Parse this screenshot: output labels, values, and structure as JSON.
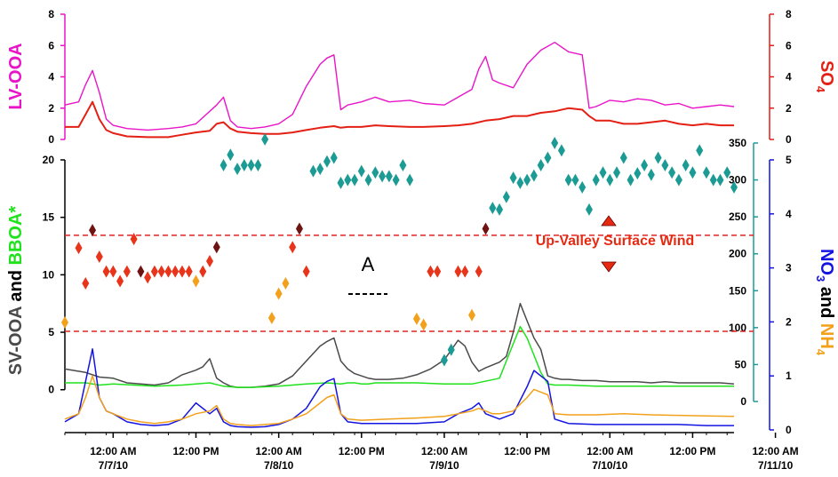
{
  "chart_data": {
    "type": "line",
    "colors": {
      "lv_ooa": "#e815c8",
      "so4": "#e41f14",
      "sv_ooa": "#4a4a4a",
      "bbox": "#1fe21c",
      "no3": "#1414e0",
      "nh4": "#f2a11c",
      "wind_dir": "#1c9b95",
      "wind_upvalley": "#e62a12",
      "threshold": "#e62222"
    },
    "x_axis": {
      "tick_labels": [
        {
          "time": "12:00 AM",
          "date": "7/7/10"
        },
        {
          "time": "12:00 PM",
          "date": ""
        },
        {
          "time": "12:00 AM",
          "date": "7/8/10"
        },
        {
          "time": "12:00 PM",
          "date": ""
        },
        {
          "time": "12:00 AM",
          "date": "7/9/10"
        },
        {
          "time": "12:00 PM",
          "date": ""
        },
        {
          "time": "12:00 AM",
          "date": "7/10/10"
        },
        {
          "time": "12:00 PM",
          "date": ""
        },
        {
          "time": "12:00 AM",
          "date": "7/11/10"
        }
      ],
      "range_hours": [
        -7,
        90
      ]
    },
    "panel_top": {
      "left_axis": {
        "label": "LV-OOA",
        "ylim": [
          0,
          8
        ],
        "ticks": [
          "0",
          "2",
          "4",
          "6",
          "8"
        ]
      },
      "right_axis": {
        "label": "SO",
        "label_sub": "4",
        "ylim": [
          0,
          8
        ],
        "ticks": [
          "0",
          "2",
          "4",
          "6",
          "8"
        ]
      },
      "series": [
        {
          "key": "lv_ooa",
          "x": [
            -7,
            -5,
            -4,
            -3,
            -2,
            -1,
            0,
            2,
            5,
            8,
            10,
            12,
            15,
            16,
            17,
            18,
            20,
            22,
            24,
            26,
            28,
            30,
            31,
            32,
            33,
            34,
            36,
            38,
            40,
            43,
            45,
            48,
            50,
            52,
            53,
            54,
            55,
            56,
            58,
            60,
            62,
            64,
            66,
            68,
            69,
            70,
            72,
            74,
            76,
            78,
            80,
            82,
            84,
            86,
            88,
            90
          ],
          "y": [
            2.2,
            2.4,
            3.5,
            4.4,
            3.0,
            1.3,
            0.9,
            0.7,
            0.6,
            0.7,
            0.8,
            1.0,
            2.2,
            2.7,
            1.2,
            0.8,
            0.7,
            0.8,
            1.0,
            1.6,
            3.4,
            4.8,
            5.2,
            5.4,
            1.9,
            2.2,
            2.4,
            2.7,
            2.4,
            2.5,
            2.3,
            2.2,
            2.7,
            3.2,
            4.5,
            5.3,
            3.8,
            3.6,
            3.3,
            4.8,
            5.7,
            6.2,
            5.6,
            5.4,
            2.0,
            2.1,
            2.5,
            2.4,
            2.6,
            2.5,
            2.2,
            2.3,
            2.0,
            2.1,
            2.2,
            2.1
          ]
        },
        {
          "key": "so4",
          "x": [
            -7,
            -5,
            -4,
            -3,
            -2,
            -1,
            0,
            2,
            5,
            8,
            10,
            12,
            14,
            15,
            16,
            17,
            18,
            20,
            22,
            24,
            26,
            28,
            30,
            32,
            33,
            34,
            36,
            38,
            40,
            43,
            45,
            48,
            50,
            52,
            54,
            56,
            58,
            60,
            62,
            64,
            66,
            68,
            69,
            70,
            72,
            74,
            76,
            78,
            80,
            82,
            84,
            86,
            88,
            90
          ],
          "y": [
            0.8,
            0.8,
            1.6,
            2.4,
            1.3,
            0.6,
            0.4,
            0.2,
            0.15,
            0.15,
            0.3,
            0.45,
            0.55,
            1.0,
            1.1,
            0.7,
            0.5,
            0.4,
            0.35,
            0.35,
            0.45,
            0.6,
            0.75,
            0.85,
            0.75,
            0.8,
            0.8,
            0.9,
            0.85,
            0.8,
            0.8,
            0.85,
            0.9,
            1.0,
            1.2,
            1.3,
            1.5,
            1.5,
            1.7,
            1.8,
            2.0,
            1.9,
            1.5,
            1.2,
            1.2,
            1.0,
            1.0,
            1.1,
            1.2,
            1.0,
            0.9,
            1.0,
            0.9,
            0.9
          ]
        }
      ]
    },
    "panel_bottom": {
      "left_axis": {
        "label_parts": [
          "SV-OOA",
          " and ",
          "BBOA*"
        ],
        "ylim": [
          -3.5,
          20
        ],
        "ticks": [
          "0",
          "5",
          "10",
          "15",
          "20"
        ]
      },
      "right_axis": {
        "label_parts": [
          "NO",
          "3",
          " and ",
          "NH",
          "4"
        ],
        "ylim": [
          0,
          5
        ],
        "ticks": [
          "0",
          "1",
          "2",
          "3",
          "4",
          "5"
        ]
      },
      "wind_axis": {
        "ylim": [
          0,
          350
        ],
        "ticks": [
          "0",
          "50",
          "100",
          "150",
          "200",
          "250",
          "300",
          "350"
        ]
      },
      "series": [
        {
          "key": "sv_ooa",
          "axis": "left",
          "x": [
            -7,
            -4,
            -2,
            0,
            2,
            4,
            6,
            8,
            10,
            12,
            13,
            14,
            15,
            16,
            17,
            18,
            20,
            22,
            24,
            26,
            28,
            30,
            31,
            32,
            33,
            34,
            35,
            36,
            37,
            38,
            40,
            42,
            44,
            46,
            48,
            50,
            51,
            52,
            53,
            54,
            56,
            57,
            58,
            59,
            60,
            61,
            62,
            63,
            64,
            65,
            66,
            68,
            70,
            72,
            74,
            76,
            78,
            80,
            82,
            84,
            86,
            88,
            90
          ],
          "y": [
            1.8,
            1.5,
            1.1,
            1.0,
            0.6,
            0.5,
            0.4,
            0.6,
            1.3,
            1.7,
            2.0,
            2.7,
            1.0,
            0.6,
            0.3,
            0.2,
            0.2,
            0.3,
            0.5,
            1.2,
            2.5,
            3.8,
            4.2,
            4.5,
            2.5,
            1.8,
            1.4,
            1.2,
            1.0,
            0.9,
            0.9,
            1.0,
            1.3,
            1.8,
            2.6,
            4.3,
            3.8,
            2.4,
            1.6,
            1.9,
            2.4,
            2.9,
            5.0,
            7.5,
            6.0,
            4.5,
            3.5,
            1.2,
            1.0,
            0.9,
            0.9,
            0.8,
            0.8,
            0.7,
            0.7,
            0.7,
            0.6,
            0.7,
            0.6,
            0.6,
            0.6,
            0.6,
            0.5
          ]
        },
        {
          "key": "bbox",
          "axis": "left",
          "x": [
            -7,
            -4,
            -2,
            0,
            3,
            6,
            10,
            14,
            16,
            18,
            20,
            24,
            28,
            31,
            33,
            34,
            35,
            36,
            37,
            38,
            40,
            44,
            48,
            52,
            56,
            57,
            58,
            59,
            60,
            61,
            62,
            63,
            64,
            66,
            70,
            74,
            78,
            82,
            86,
            90
          ],
          "y": [
            0.6,
            0.6,
            0.4,
            0.5,
            0.4,
            0.3,
            0.4,
            0.6,
            0.3,
            0.2,
            0.2,
            0.3,
            0.5,
            0.6,
            0.5,
            0.6,
            0.6,
            0.5,
            0.5,
            0.6,
            0.6,
            0.6,
            0.5,
            0.5,
            1.0,
            2.5,
            4.0,
            5.5,
            4.5,
            3.0,
            1.5,
            0.5,
            0.4,
            0.4,
            0.3,
            0.3,
            0.3,
            0.3,
            0.3,
            0.3
          ]
        },
        {
          "key": "no3",
          "axis": "right",
          "x": [
            -7,
            -5,
            -4,
            -3,
            -2,
            -1,
            0,
            2,
            4,
            6,
            8,
            10,
            12,
            14,
            15,
            16,
            17,
            18,
            20,
            22,
            24,
            26,
            28,
            30,
            31,
            32,
            33,
            34,
            36,
            40,
            44,
            48,
            50,
            52,
            53,
            54,
            55,
            56,
            58,
            60,
            61,
            62,
            63,
            64,
            66,
            70,
            74,
            78,
            82,
            86,
            90
          ],
          "y": [
            0.15,
            0.3,
            0.9,
            1.5,
            0.6,
            0.35,
            0.3,
            0.15,
            0.1,
            0.08,
            0.1,
            0.2,
            0.5,
            0.3,
            0.4,
            0.15,
            0.08,
            0.06,
            0.05,
            0.06,
            0.1,
            0.2,
            0.4,
            0.8,
            0.9,
            0.95,
            0.3,
            0.15,
            0.12,
            0.12,
            0.12,
            0.15,
            0.3,
            0.4,
            0.5,
            0.3,
            0.25,
            0.2,
            0.3,
            0.8,
            1.1,
            1.0,
            0.9,
            0.2,
            0.12,
            0.1,
            0.1,
            0.1,
            0.1,
            0.08,
            0.08
          ]
        },
        {
          "key": "nh4",
          "axis": "right",
          "x": [
            -7,
            -5,
            -4,
            -3,
            -2,
            -1,
            0,
            2,
            4,
            6,
            8,
            10,
            12,
            14,
            15,
            16,
            17,
            18,
            20,
            22,
            24,
            26,
            28,
            30,
            31,
            32,
            33,
            34,
            36,
            40,
            44,
            48,
            50,
            52,
            53,
            54,
            55,
            56,
            58,
            60,
            61,
            62,
            63,
            64,
            66,
            70,
            74,
            78,
            82,
            86,
            90
          ],
          "y": [
            0.2,
            0.3,
            0.6,
            1.0,
            0.6,
            0.35,
            0.3,
            0.2,
            0.15,
            0.12,
            0.15,
            0.2,
            0.3,
            0.35,
            0.45,
            0.2,
            0.12,
            0.1,
            0.08,
            0.1,
            0.12,
            0.2,
            0.3,
            0.5,
            0.6,
            0.65,
            0.3,
            0.2,
            0.18,
            0.2,
            0.22,
            0.25,
            0.3,
            0.35,
            0.4,
            0.35,
            0.3,
            0.3,
            0.35,
            0.6,
            0.75,
            0.7,
            0.65,
            0.3,
            0.28,
            0.28,
            0.3,
            0.28,
            0.27,
            0.26,
            0.25
          ]
        }
      ],
      "wind_points": {
        "x": [
          -7,
          -5,
          -4,
          -3,
          -2,
          -1,
          0,
          1,
          2,
          3,
          4,
          5,
          6,
          7,
          8,
          9,
          10,
          11,
          12,
          13,
          14,
          15,
          16,
          17,
          18,
          19,
          20,
          21,
          22,
          23,
          24,
          25,
          26,
          27,
          28,
          29,
          30,
          31,
          32,
          33,
          34,
          35,
          36,
          37,
          38,
          39,
          40,
          41,
          42,
          43,
          44,
          45,
          46,
          47,
          48,
          49,
          50,
          51,
          52,
          53,
          54,
          55,
          56,
          57,
          58,
          59,
          60,
          61,
          62,
          63,
          64,
          65,
          66,
          67,
          68,
          69,
          70,
          71,
          72,
          73,
          74,
          75,
          76,
          77,
          78,
          79,
          80,
          81,
          82,
          83,
          84,
          85,
          86,
          87,
          88,
          89,
          90
        ],
        "y": [
          107,
          208,
          160,
          232,
          196,
          176,
          176,
          163,
          176,
          220,
          176,
          168,
          176,
          176,
          176,
          176,
          176,
          176,
          163,
          176,
          190,
          209,
          320,
          334,
          315,
          320,
          320,
          320,
          355,
          113,
          146,
          160,
          209,
          234,
          176,
          312,
          315,
          325,
          330,
          296,
          300,
          300,
          312,
          300,
          310,
          305,
          305,
          300,
          320,
          300,
          112,
          104,
          176,
          176,
          56,
          70,
          176,
          176,
          117,
          176,
          234,
          262,
          260,
          277,
          303,
          296,
          300,
          306,
          320,
          330,
          350,
          340,
          300,
          300,
          290,
          260,
          300,
          310,
          300,
          310,
          330,
          300,
          309,
          320,
          307,
          330,
          320,
          310,
          300,
          320,
          310,
          340,
          310,
          300,
          300,
          310,
          290
        ],
        "kinds": [
          "o",
          "r",
          "r",
          "d",
          "r",
          "r",
          "r",
          "r",
          "r",
          "r",
          "d",
          "r",
          "r",
          "r",
          "r",
          "r",
          "r",
          "r",
          "o",
          "r",
          "r",
          "d",
          "t",
          "t",
          "t",
          "t",
          "t",
          "t",
          "t",
          "o",
          "o",
          "o",
          "r",
          "d",
          "r",
          "t",
          "t",
          "t",
          "t",
          "t",
          "t",
          "t",
          "t",
          "t",
          "t",
          "t",
          "t",
          "t",
          "t",
          "t",
          "o",
          "o",
          "r",
          "r",
          "t",
          "t",
          "r",
          "r",
          "o",
          "r",
          "d",
          "t",
          "t",
          "t",
          "t",
          "t",
          "t",
          "t",
          "t",
          "t",
          "t",
          "t",
          "t",
          "t",
          "t",
          "t",
          "t",
          "t",
          "t",
          "t",
          "t",
          "t",
          "t",
          "t",
          "t",
          "t",
          "t",
          "t",
          "t",
          "t",
          "t",
          "t",
          "t",
          "t",
          "t",
          "t",
          "t"
        ]
      },
      "thresholds": {
        "lines_deg": [
          95,
          225
        ]
      },
      "annotations": {
        "label": "A",
        "up_valley": "Up-Valley Surface Wind"
      }
    }
  }
}
